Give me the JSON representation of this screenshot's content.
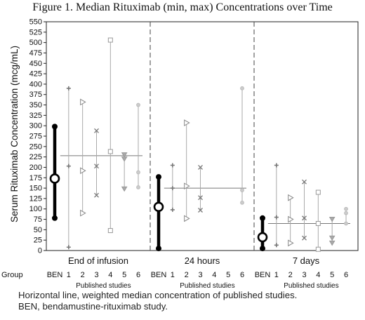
{
  "title": "Figure 1. Median Rituximab (min, max) Concentrations over Time",
  "caption": [
    "Horizontal line, weighted median concentration of published studies.",
    "BEN, bendamustine-rituximab study."
  ],
  "chart_data": {
    "type": "scatter",
    "ylabel": "Serum Rituximab Concentration (mcg/mL)",
    "ylim": [
      0,
      550
    ],
    "yticks": [
      0,
      25,
      50,
      75,
      100,
      125,
      150,
      175,
      200,
      225,
      250,
      275,
      300,
      325,
      350,
      375,
      400,
      425,
      450,
      475,
      500,
      525,
      550
    ],
    "group_row_label": "Group",
    "group_labels": [
      "BEN",
      "1",
      "2",
      "3",
      "4",
      "5",
      "6"
    ],
    "subgroup_label": "Published studies",
    "panels": [
      {
        "label": "End of infusion",
        "weighted_median": 228,
        "points": [
          {
            "group": "BEN",
            "median": 173,
            "min": 78,
            "max": 298
          },
          {
            "group": "1",
            "median": 203,
            "min": 8,
            "max": 390
          },
          {
            "group": "2",
            "median": 192,
            "min": 90,
            "max": 357
          },
          {
            "group": "3",
            "median": 203,
            "min": 133,
            "max": 288
          },
          {
            "group": "4",
            "median": 238,
            "min": 48,
            "max": 506
          },
          {
            "group": "5",
            "median": 220,
            "min": 148,
            "max": 230
          },
          {
            "group": "6",
            "median": 188,
            "min": 152,
            "max": 350
          }
        ]
      },
      {
        "label": "24 hours",
        "weighted_median": 150,
        "points": [
          {
            "group": "BEN",
            "median": 105,
            "min": 5,
            "max": 177
          },
          {
            "group": "1",
            "median": 150,
            "min": 98,
            "max": 205
          },
          {
            "group": "2",
            "median": 155,
            "min": 77,
            "max": 307
          },
          {
            "group": "3",
            "median": 127,
            "min": 97,
            "max": 200
          },
          {
            "group": "6",
            "median": 145,
            "min": 115,
            "max": 390
          }
        ]
      },
      {
        "label": "7 days",
        "weighted_median": 65,
        "points": [
          {
            "group": "BEN",
            "median": 32,
            "min": 5,
            "max": 78
          },
          {
            "group": "1",
            "median": 80,
            "min": 13,
            "max": 205
          },
          {
            "group": "2",
            "median": 75,
            "min": 18,
            "max": 127
          },
          {
            "group": "3",
            "median": 78,
            "min": 30,
            "max": 165
          },
          {
            "group": "4",
            "median": 65,
            "min": 3,
            "max": 140
          },
          {
            "group": "5",
            "median": 30,
            "min": 18,
            "max": 75
          },
          {
            "group": "6",
            "median": 90,
            "min": 65,
            "max": 100
          }
        ]
      }
    ]
  }
}
